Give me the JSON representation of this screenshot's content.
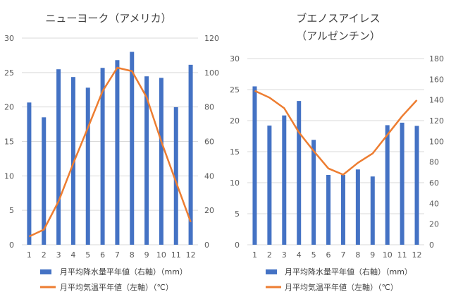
{
  "chart_data": [
    {
      "type": "bar+line",
      "title_lines": [
        "ニューヨーク（アメリカ）"
      ],
      "categories": [
        "1",
        "2",
        "3",
        "4",
        "5",
        "6",
        "7",
        "8",
        "9",
        "10",
        "11",
        "12"
      ],
      "left_axis": {
        "ticks": [
          "0",
          "5",
          "10",
          "15",
          "20",
          "25",
          "30"
        ],
        "min": 0,
        "max": 30
      },
      "right_axis": {
        "ticks": [
          "0",
          "20",
          "40",
          "60",
          "80",
          "100",
          "120"
        ],
        "min": 0,
        "max": 120
      },
      "series": [
        {
          "name": "月平均降水量平年値（右軸）（mm）",
          "kind": "bar",
          "axis": "right",
          "color": "#4472C4",
          "values": [
            82.6,
            74.0,
            101.9,
            97.4,
            91.2,
            102.7,
            107.2,
            112.0,
            97.8,
            96.9,
            79.9,
            104.5
          ]
        },
        {
          "name": "月平均気温平年値（左軸）（℃）",
          "kind": "line",
          "axis": "left",
          "color": "#ED7D31",
          "values": [
            1.2,
            2.2,
            6.3,
            11.8,
            17.0,
            22.3,
            25.7,
            25.2,
            21.4,
            15.0,
            9.1,
            3.3
          ]
        }
      ]
    },
    {
      "type": "bar+line",
      "title_lines": [
        "ブエノスアイレス",
        "（アルゼンチン）"
      ],
      "categories": [
        "1",
        "2",
        "3",
        "4",
        "5",
        "6",
        "7",
        "8",
        "9",
        "10",
        "11",
        "12"
      ],
      "left_axis": {
        "ticks": [
          "0",
          "5",
          "10",
          "15",
          "20",
          "25",
          "30"
        ],
        "min": 0,
        "max": 30
      },
      "right_axis": {
        "ticks": [
          "0",
          "20",
          "40",
          "60",
          "80",
          "100",
          "120",
          "140",
          "160",
          "180"
        ],
        "min": 0,
        "max": 180
      },
      "series": [
        {
          "name": "月平均降水量平年値（右軸）（mm）",
          "kind": "bar",
          "axis": "right",
          "color": "#4472C4",
          "values": [
            153.1,
            115.2,
            125.0,
            139.0,
            101.4,
            67.5,
            67.5,
            72.8,
            66.0,
            115.6,
            118.0,
            114.9
          ]
        },
        {
          "name": "月平均気温平年値（左軸）（℃）",
          "kind": "line",
          "axis": "left",
          "color": "#ED7D31",
          "values": [
            24.8,
            23.7,
            22.0,
            18.1,
            15.1,
            12.3,
            11.3,
            13.2,
            14.7,
            17.7,
            20.7,
            23.3
          ]
        }
      ]
    }
  ]
}
